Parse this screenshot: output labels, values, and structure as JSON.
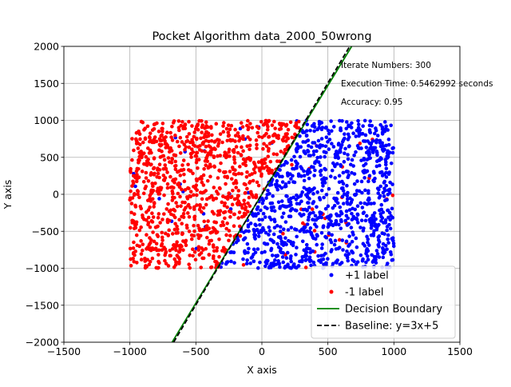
{
  "chart_data": {
    "type": "scatter",
    "title": "Pocket Algorithm data_2000_50wrong",
    "xlabel": "X axis",
    "ylabel": "Y axis",
    "xlim": [
      -1500,
      1500
    ],
    "ylim": [
      -2000,
      2000
    ],
    "xticks": [
      -1500,
      -1000,
      -500,
      0,
      500,
      1000,
      1500
    ],
    "yticks": [
      -2000,
      -1500,
      -1000,
      -500,
      0,
      500,
      1000,
      1500,
      2000
    ],
    "xtick_labels": [
      "−1500",
      "−1000",
      "−500",
      "0",
      "500",
      "1000",
      "1500"
    ],
    "ytick_labels": [
      "−2000",
      "−1500",
      "−1000",
      "−500",
      "0",
      "500",
      "1000",
      "1500",
      "2000"
    ],
    "grid": true,
    "legend_position": "lower-right",
    "annotations": [
      "Iterate Numbers: 300",
      "Execution Time: 0.5462992 seconds",
      "Accuracy: 0.95"
    ],
    "data_region": {
      "x": [
        -1000,
        1000
      ],
      "y": [
        -1000,
        1000
      ]
    },
    "total_points": 2000,
    "wrong_labels": 50,
    "series": [
      {
        "name": "+1 label",
        "color": "#0000ff",
        "kind": "scatter",
        "rule": "y < 3x + 5"
      },
      {
        "name": "-1 label",
        "color": "#ff0000",
        "kind": "scatter",
        "rule": "y > 3x + 5"
      },
      {
        "name": "Decision Boundary",
        "color": "#008000",
        "kind": "line",
        "x": [
          -680,
          680
        ],
        "y": [
          -2000,
          2000
        ]
      },
      {
        "name": "Baseline: y=3x+5",
        "color": "#000000",
        "kind": "dashed-line",
        "slope": 3,
        "intercept": 5
      }
    ]
  }
}
